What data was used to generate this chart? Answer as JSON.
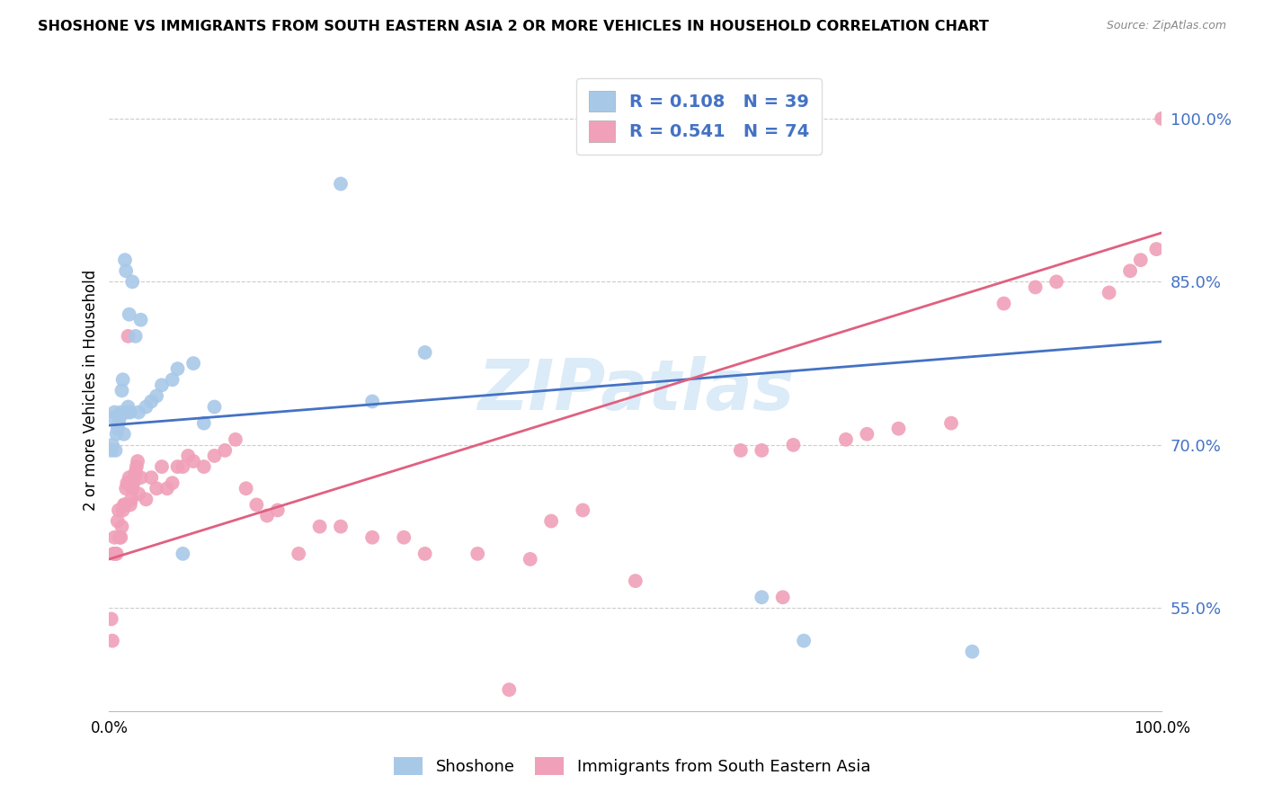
{
  "title": "SHOSHONE VS IMMIGRANTS FROM SOUTH EASTERN ASIA 2 OR MORE VEHICLES IN HOUSEHOLD CORRELATION CHART",
  "source": "Source: ZipAtlas.com",
  "ylabel": "2 or more Vehicles in Household",
  "watermark": "ZIPatlas",
  "blue_R": 0.108,
  "blue_N": 39,
  "pink_R": 0.541,
  "pink_N": 74,
  "blue_color": "#a8c8e8",
  "pink_color": "#f0a0b8",
  "blue_line_color": "#4472C4",
  "pink_line_color": "#e06080",
  "legend_text_color": "#4472C4",
  "ytick_color": "#4472C4",
  "grid_color": "#cccccc",
  "background_color": "#ffffff",
  "blue_line": {
    "x0": 0.0,
    "y0": 0.718,
    "x1": 1.0,
    "y1": 0.795
  },
  "pink_line": {
    "x0": 0.0,
    "y0": 0.595,
    "x1": 1.0,
    "y1": 0.895
  },
  "blue_scatter": {
    "x": [
      0.002,
      0.003,
      0.004,
      0.005,
      0.006,
      0.007,
      0.008,
      0.009,
      0.01,
      0.011,
      0.012,
      0.013,
      0.014,
      0.015,
      0.016,
      0.017,
      0.018,
      0.019,
      0.02,
      0.022,
      0.025,
      0.028,
      0.03,
      0.035,
      0.04,
      0.045,
      0.05,
      0.06,
      0.065,
      0.07,
      0.08,
      0.09,
      0.1,
      0.22,
      0.25,
      0.3,
      0.62,
      0.66,
      0.82
    ],
    "y": [
      0.695,
      0.7,
      0.725,
      0.73,
      0.695,
      0.71,
      0.715,
      0.72,
      0.725,
      0.73,
      0.75,
      0.76,
      0.71,
      0.87,
      0.86,
      0.73,
      0.735,
      0.82,
      0.73,
      0.85,
      0.8,
      0.73,
      0.815,
      0.735,
      0.74,
      0.745,
      0.755,
      0.76,
      0.77,
      0.6,
      0.775,
      0.72,
      0.735,
      0.94,
      0.74,
      0.785,
      0.56,
      0.52,
      0.51
    ]
  },
  "pink_scatter": {
    "x": [
      0.002,
      0.003,
      0.004,
      0.005,
      0.006,
      0.007,
      0.008,
      0.009,
      0.01,
      0.011,
      0.012,
      0.013,
      0.014,
      0.015,
      0.016,
      0.017,
      0.018,
      0.019,
      0.02,
      0.021,
      0.022,
      0.023,
      0.024,
      0.025,
      0.026,
      0.027,
      0.028,
      0.03,
      0.035,
      0.04,
      0.045,
      0.05,
      0.055,
      0.06,
      0.065,
      0.07,
      0.075,
      0.08,
      0.09,
      0.1,
      0.11,
      0.12,
      0.13,
      0.14,
      0.15,
      0.16,
      0.18,
      0.2,
      0.22,
      0.25,
      0.28,
      0.3,
      0.35,
      0.38,
      0.4,
      0.42,
      0.45,
      0.5,
      0.6,
      0.62,
      0.64,
      0.65,
      0.7,
      0.72,
      0.75,
      0.8,
      0.85,
      0.88,
      0.9,
      0.95,
      0.97,
      0.98,
      0.995,
      1.0
    ],
    "y": [
      0.54,
      0.52,
      0.6,
      0.615,
      0.6,
      0.6,
      0.63,
      0.64,
      0.615,
      0.615,
      0.625,
      0.64,
      0.645,
      0.645,
      0.66,
      0.665,
      0.8,
      0.67,
      0.645,
      0.65,
      0.66,
      0.665,
      0.67,
      0.675,
      0.68,
      0.685,
      0.655,
      0.67,
      0.65,
      0.67,
      0.66,
      0.68,
      0.66,
      0.665,
      0.68,
      0.68,
      0.69,
      0.685,
      0.68,
      0.69,
      0.695,
      0.705,
      0.66,
      0.645,
      0.635,
      0.64,
      0.6,
      0.625,
      0.625,
      0.615,
      0.615,
      0.6,
      0.6,
      0.475,
      0.595,
      0.63,
      0.64,
      0.575,
      0.695,
      0.695,
      0.56,
      0.7,
      0.705,
      0.71,
      0.715,
      0.72,
      0.83,
      0.845,
      0.85,
      0.84,
      0.86,
      0.87,
      0.88,
      1.0
    ]
  },
  "yticks": [
    0.55,
    0.7,
    0.85,
    1.0
  ],
  "ytick_labels": [
    "55.0%",
    "70.0%",
    "85.0%",
    "100.0%"
  ],
  "xtick_labels": [
    "0.0%",
    "100.0%"
  ],
  "xlim": [
    0,
    1.0
  ],
  "ylim": [
    0.455,
    1.045
  ]
}
